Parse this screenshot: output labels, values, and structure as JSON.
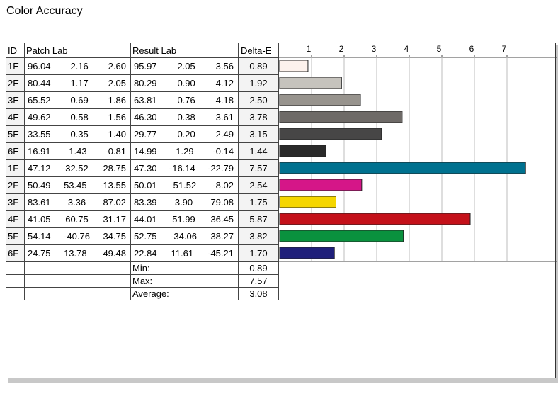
{
  "title": "Color Accuracy",
  "headers": {
    "id": "ID",
    "patch": "Patch Lab",
    "result": "Result Lab",
    "delta": "Delta-E"
  },
  "rows": [
    {
      "id": "1E",
      "patch": [
        "96.04",
        "2.16",
        "2.60"
      ],
      "result": [
        "95.97",
        "2.05",
        "3.56"
      ],
      "de": "0.89"
    },
    {
      "id": "2E",
      "patch": [
        "80.44",
        "1.17",
        "2.05"
      ],
      "result": [
        "80.29",
        "0.90",
        "4.12"
      ],
      "de": "1.92"
    },
    {
      "id": "3E",
      "patch": [
        "65.52",
        "0.69",
        "1.86"
      ],
      "result": [
        "63.81",
        "0.76",
        "4.18"
      ],
      "de": "2.50"
    },
    {
      "id": "4E",
      "patch": [
        "49.62",
        "0.58",
        "1.56"
      ],
      "result": [
        "46.30",
        "0.38",
        "3.61"
      ],
      "de": "3.78"
    },
    {
      "id": "5E",
      "patch": [
        "33.55",
        "0.35",
        "1.40"
      ],
      "result": [
        "29.77",
        "0.20",
        "2.49"
      ],
      "de": "3.15"
    },
    {
      "id": "6E",
      "patch": [
        "16.91",
        "1.43",
        "-0.81"
      ],
      "result": [
        "14.99",
        "1.29",
        "-0.14"
      ],
      "de": "1.44"
    },
    {
      "id": "1F",
      "patch": [
        "47.12",
        "-32.52",
        "-28.75"
      ],
      "result": [
        "47.30",
        "-16.14",
        "-22.79"
      ],
      "de": "7.57"
    },
    {
      "id": "2F",
      "patch": [
        "50.49",
        "53.45",
        "-13.55"
      ],
      "result": [
        "50.01",
        "51.52",
        "-8.02"
      ],
      "de": "2.54"
    },
    {
      "id": "3F",
      "patch": [
        "83.61",
        "3.36",
        "87.02"
      ],
      "result": [
        "83.39",
        "3.90",
        "79.08"
      ],
      "de": "1.75"
    },
    {
      "id": "4F",
      "patch": [
        "41.05",
        "60.75",
        "31.17"
      ],
      "result": [
        "44.01",
        "51.99",
        "36.45"
      ],
      "de": "5.87"
    },
    {
      "id": "5F",
      "patch": [
        "54.14",
        "-40.76",
        "34.75"
      ],
      "result": [
        "52.75",
        "-34.06",
        "38.27"
      ],
      "de": "3.82"
    },
    {
      "id": "6F",
      "patch": [
        "24.75",
        "13.78",
        "-49.48"
      ],
      "result": [
        "22.84",
        "11.61",
        "-45.21"
      ],
      "de": "1.70"
    }
  ],
  "summary": [
    {
      "label": "Min:",
      "value": "0.89"
    },
    {
      "label": "Max:",
      "value": "7.57"
    },
    {
      "label": "Average:",
      "value": "3.08"
    }
  ],
  "chart_data": {
    "type": "bar",
    "orientation": "horizontal",
    "categories": [
      "1E",
      "2E",
      "3E",
      "4E",
      "5E",
      "6E",
      "1F",
      "2F",
      "3F",
      "4F",
      "5F",
      "6F"
    ],
    "values": [
      0.89,
      1.92,
      2.5,
      3.78,
      3.15,
      1.44,
      7.57,
      2.54,
      1.75,
      5.87,
      3.82,
      1.7
    ],
    "colors": [
      "#fdf2ec",
      "#c6c3bd",
      "#97938d",
      "#6e6a67",
      "#474646",
      "#2a2a2a",
      "#00718f",
      "#d51688",
      "#f5d600",
      "#c4111a",
      "#0a913e",
      "#1f1f7a"
    ],
    "xticks": [
      1,
      2,
      3,
      4,
      5,
      6,
      7
    ],
    "xlim": [
      0,
      7.6
    ],
    "grid": true
  }
}
